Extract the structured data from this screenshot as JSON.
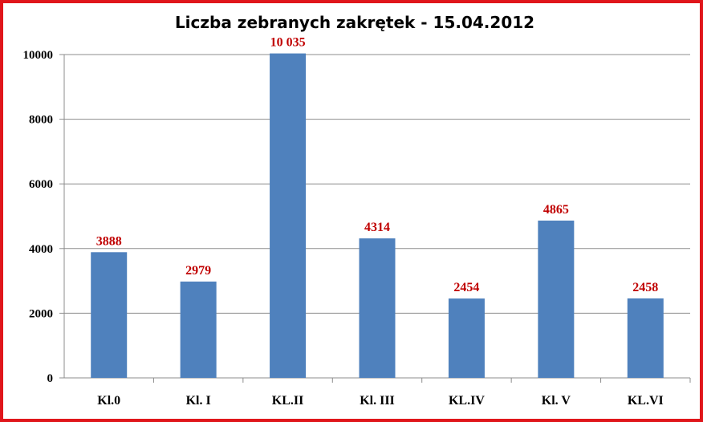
{
  "chart_data": {
    "type": "bar",
    "title": "Liczba zebranych zakrętek - 15.04.2012",
    "categories": [
      "Kl.0",
      "Kl. I",
      "KL.II",
      "Kl. III",
      "KL.IV",
      "Kl. V",
      "KL.VI"
    ],
    "values": [
      3888,
      2979,
      10035,
      4314,
      2454,
      4865,
      2458
    ],
    "data_labels": [
      "3888",
      "2979",
      "10 035",
      "4314",
      "2454",
      "4865",
      "2458"
    ],
    "ylim": [
      0,
      10000
    ],
    "yticks": [
      0,
      2000,
      4000,
      6000,
      8000,
      10000
    ],
    "grid": true,
    "legend": "none",
    "colors": {
      "bar": "#4f81bd",
      "data_label": "#c00000",
      "frame": "#e0161b",
      "grid": "#8c8c8c"
    }
  }
}
